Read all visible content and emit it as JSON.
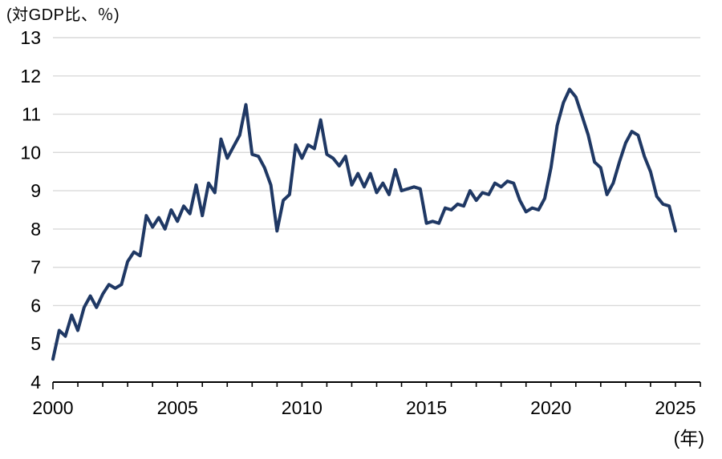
{
  "chart_data": {
    "type": "line",
    "title": "(対GDP比、％)",
    "x_axis_unit": "(年)",
    "xlabel": "年",
    "ylabel": "対GDP比（％）",
    "xlim": [
      2000,
      2026
    ],
    "ylim": [
      4,
      13
    ],
    "y_ticks": [
      4,
      5,
      6,
      7,
      8,
      9,
      10,
      11,
      12,
      13
    ],
    "x_minor_tick_step_years": 1,
    "x_ticks_major": [
      2000,
      2005,
      2010,
      2015,
      2020,
      2025
    ],
    "grid": "horizontal",
    "legend": "none",
    "line_color": "#1f3864",
    "gridline_color": "#d9d9d9",
    "axis_color": "#000000",
    "series": [
      {
        "name": "対GDP比",
        "frequency": "quarterly",
        "x_start": 2000.0,
        "x_step": 0.25,
        "values": [
          4.6,
          5.35,
          5.2,
          5.75,
          5.35,
          5.95,
          6.25,
          5.95,
          6.3,
          6.55,
          6.45,
          6.55,
          7.15,
          7.4,
          7.3,
          8.35,
          8.05,
          8.3,
          8.0,
          8.5,
          8.2,
          8.6,
          8.4,
          9.15,
          8.35,
          9.2,
          8.95,
          10.35,
          9.85,
          10.15,
          10.45,
          11.25,
          9.95,
          9.9,
          9.6,
          9.15,
          7.95,
          8.75,
          8.9,
          10.2,
          9.85,
          10.2,
          10.1,
          10.85,
          9.95,
          9.85,
          9.65,
          9.9,
          9.15,
          9.45,
          9.1,
          9.45,
          8.95,
          9.2,
          8.9,
          9.55,
          9.0,
          9.05,
          9.1,
          9.05,
          8.15,
          8.2,
          8.15,
          8.55,
          8.5,
          8.65,
          8.6,
          9.0,
          8.75,
          8.95,
          8.9,
          9.2,
          9.1,
          9.25,
          9.2,
          8.75,
          8.45,
          8.55,
          8.5,
          8.8,
          9.6,
          10.7,
          11.3,
          11.65,
          11.45,
          10.95,
          10.45,
          9.75,
          9.6,
          8.9,
          9.2,
          9.75,
          10.25,
          10.55,
          10.45,
          9.9,
          9.5,
          8.85,
          8.65,
          8.6,
          7.95
        ]
      }
    ]
  }
}
